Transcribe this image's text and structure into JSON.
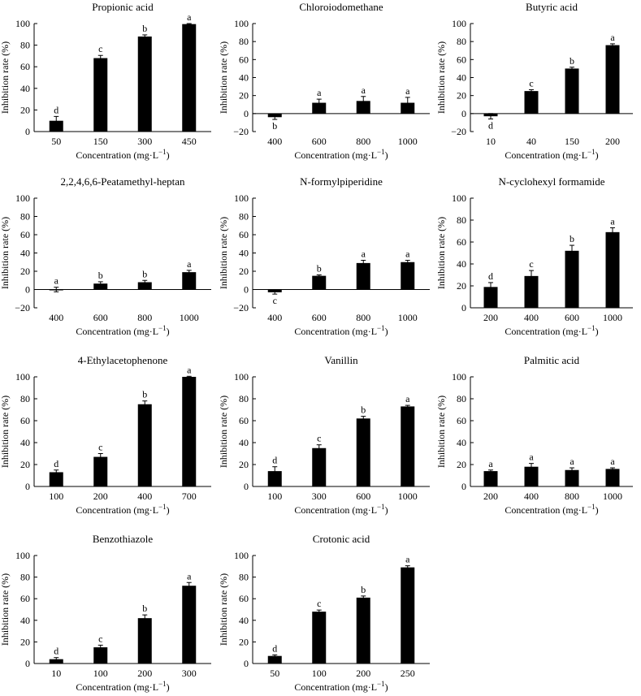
{
  "figure": {
    "xlabel": "Concentration (mg·L",
    "xlabel_sup": "−1",
    "xlabel_end": ")",
    "ylabel": "Inhibition rate (%)"
  },
  "chart_data": [
    {
      "type": "bar",
      "title": "Propionic acid",
      "categories": [
        "50",
        "150",
        "300",
        "450"
      ],
      "values": [
        10,
        68,
        88,
        99.5
      ],
      "errors": [
        4,
        2.5,
        1.5,
        0.5
      ],
      "letters": [
        "d",
        "c",
        "b",
        "a"
      ],
      "ylim": [
        0,
        100
      ],
      "yticks": [
        0,
        20,
        40,
        60,
        80,
        100
      ],
      "xlabel": "Concentration (mg·L−1)",
      "ylabel": "Inhibition rate (%)"
    },
    {
      "type": "bar",
      "title": "Chloroiodomethane",
      "categories": [
        "400",
        "600",
        "800",
        "1000"
      ],
      "values": [
        -4,
        12,
        14,
        12
      ],
      "errors": [
        2.5,
        4,
        5,
        6
      ],
      "letters": [
        "b",
        "a",
        "a",
        "a"
      ],
      "ylim": [
        -20,
        100
      ],
      "yticks": [
        -20,
        0,
        20,
        40,
        60,
        80,
        100
      ],
      "xlabel": "Concentration (mg·L−1)",
      "ylabel": "Inhibition rate (%)"
    },
    {
      "type": "bar",
      "title": "Butyric acid",
      "categories": [
        "10",
        "40",
        "150",
        "200"
      ],
      "values": [
        -3,
        25,
        50,
        76
      ],
      "errors": [
        3,
        1.5,
        1.5,
        1.5
      ],
      "letters": [
        "d",
        "c",
        "b",
        "a"
      ],
      "ylim": [
        -20,
        100
      ],
      "yticks": [
        -20,
        0,
        20,
        40,
        60,
        80,
        100
      ],
      "xlabel": "Concentration (mg·L−1)",
      "ylabel": "Inhibition rate (%)"
    },
    {
      "type": "bar",
      "title": "2,2,4,6,6-Peatamethyl-heptan",
      "categories": [
        "400",
        "600",
        "800",
        "1000"
      ],
      "values": [
        0,
        6.5,
        8,
        19
      ],
      "errors": [
        2.5,
        2,
        2,
        2
      ],
      "letters": [
        "a",
        "b",
        "b",
        "a"
      ],
      "ylim": [
        -20,
        100
      ],
      "yticks": [
        -20,
        0,
        20,
        40,
        60,
        80,
        100
      ],
      "xlabel": "Concentration (mg·L−1)",
      "ylabel": "Inhibition rate (%)"
    },
    {
      "type": "bar",
      "title": "N-formylpiperidine",
      "categories": [
        "400",
        "600",
        "800",
        "1000"
      ],
      "values": [
        -3,
        15,
        29,
        30
      ],
      "errors": [
        2,
        1,
        3,
        2
      ],
      "letters": [
        "c",
        "b",
        "a",
        "a"
      ],
      "ylim": [
        -20,
        100
      ],
      "yticks": [
        -20,
        0,
        20,
        40,
        60,
        80,
        100
      ],
      "xlabel": "Concentration (mg·L−1)",
      "ylabel": "Inhibition rate (%)"
    },
    {
      "type": "bar",
      "title": "N-cyclohexyl formamide",
      "categories": [
        "200",
        "400",
        "600",
        "1000"
      ],
      "values": [
        19,
        29,
        52,
        69
      ],
      "errors": [
        4,
        5,
        5,
        4
      ],
      "letters": [
        "d",
        "c",
        "b",
        "a"
      ],
      "ylim": [
        0,
        100
      ],
      "yticks": [
        0,
        20,
        40,
        60,
        80,
        100
      ],
      "xlabel": "Concentration (mg·L−1)",
      "ylabel": "Inhibition rate (%)"
    },
    {
      "type": "bar",
      "title": "4-Ethylacetophenone",
      "categories": [
        "100",
        "200",
        "400",
        "700"
      ],
      "values": [
        13,
        27,
        75,
        100
      ],
      "errors": [
        2,
        3,
        3,
        0.5
      ],
      "letters": [
        "d",
        "c",
        "b",
        "a"
      ],
      "ylim": [
        0,
        100
      ],
      "yticks": [
        0,
        20,
        40,
        60,
        80,
        100
      ],
      "xlabel": "Concentration (mg·L−1)",
      "ylabel": "Inhibition rate (%)"
    },
    {
      "type": "bar",
      "title": "Vanillin",
      "categories": [
        "100",
        "300",
        "600",
        "1000"
      ],
      "values": [
        14,
        35,
        62,
        73
      ],
      "errors": [
        4,
        3,
        2,
        1
      ],
      "letters": [
        "d",
        "c",
        "b",
        "a"
      ],
      "ylim": [
        0,
        100
      ],
      "yticks": [
        0,
        20,
        40,
        60,
        80,
        100
      ],
      "xlabel": "Concentration (mg·L−1)",
      "ylabel": "Inhibition rate (%)"
    },
    {
      "type": "bar",
      "title": "Palmitic acid",
      "categories": [
        "200",
        "400",
        "800",
        "1000"
      ],
      "values": [
        14,
        18,
        15,
        16
      ],
      "errors": [
        1,
        3,
        2,
        1
      ],
      "letters": [
        "a",
        "a",
        "a",
        "a"
      ],
      "ylim": [
        0,
        100
      ],
      "yticks": [
        0,
        20,
        40,
        60,
        80,
        100
      ],
      "xlabel": "Concentration (mg·L−1)",
      "ylabel": "Inhibition rate (%)"
    },
    {
      "type": "bar",
      "title": "Benzothiazole",
      "categories": [
        "10",
        "100",
        "200",
        "300"
      ],
      "values": [
        4,
        15,
        42,
        72
      ],
      "errors": [
        1.5,
        2,
        3,
        3
      ],
      "letters": [
        "d",
        "c",
        "b",
        "a"
      ],
      "ylim": [
        0,
        100
      ],
      "yticks": [
        0,
        20,
        40,
        60,
        80,
        100
      ],
      "xlabel": "Concentration (mg·L−1)",
      "ylabel": "Inhibition rate (%)"
    },
    {
      "type": "bar",
      "title": "Crotonic acid",
      "categories": [
        "50",
        "100",
        "200",
        "250"
      ],
      "values": [
        7,
        48,
        61,
        89
      ],
      "errors": [
        1,
        1.5,
        1.5,
        1.5
      ],
      "letters": [
        "d",
        "c",
        "b",
        "a"
      ],
      "ylim": [
        0,
        100
      ],
      "yticks": [
        0,
        20,
        40,
        60,
        80,
        100
      ],
      "xlabel": "Concentration (mg·L−1)",
      "ylabel": "Inhibition rate (%)"
    }
  ]
}
